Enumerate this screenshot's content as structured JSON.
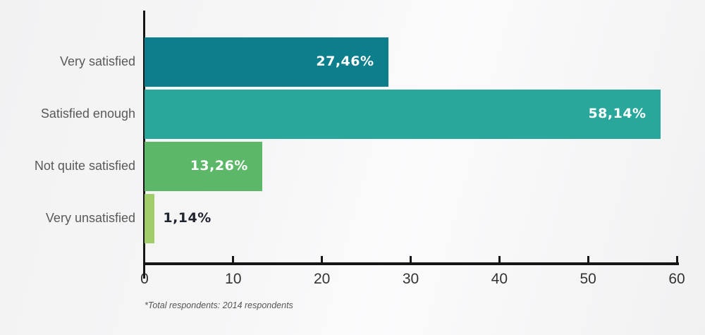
{
  "chart_data": {
    "type": "bar",
    "orientation": "horizontal",
    "title": "",
    "xlabel": "",
    "ylabel": "",
    "categories": [
      "Very satisfied",
      "Satisfied enough",
      "Not quite satisfied",
      "Very unsatisfied"
    ],
    "values": [
      27.46,
      58.14,
      13.26,
      1.14
    ],
    "value_labels": [
      "27,46%",
      "58,14%",
      "13,26%",
      "1,14%"
    ],
    "bar_colors": [
      "#0d7f8c",
      "#2aa79b",
      "#5cb868",
      "#a0cd69"
    ],
    "xlim": [
      0,
      60
    ],
    "x_ticks": [
      0,
      10,
      20,
      30,
      40,
      50,
      60
    ],
    "grid": false,
    "legend": false,
    "footnote": "*Total respondents: 2014 respondents"
  },
  "colors": {
    "axis": "#161616",
    "category_label": "#595959",
    "tick_label": "#333333",
    "value_label_inside": "#ffffff",
    "value_label_outside": "#20242f",
    "footnote": "#555555"
  }
}
